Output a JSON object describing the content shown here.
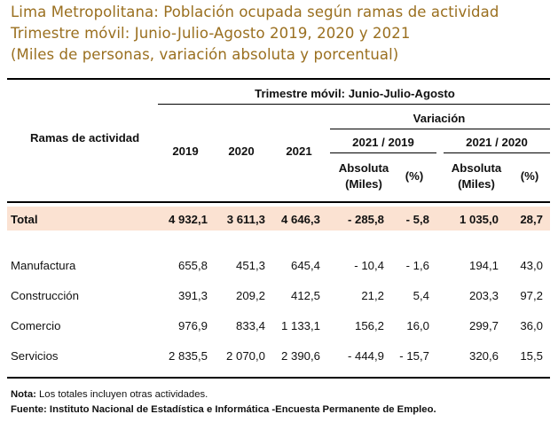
{
  "title": {
    "line1": "Lima Metropolitana: Población ocupada según ramas de actividad",
    "line2": "Trimestre móvil: Junio-Julio-Agosto  2019, 2020 y 2021",
    "line3": "(Miles de personas, variación absoluta y porcentual)"
  },
  "headers": {
    "rowhead": "Ramas de actividad",
    "period": "Trimestre móvil: Junio-Julio-Agosto",
    "variation": "Variación",
    "y2019": "2019",
    "y2020": "2020",
    "y2021": "2021",
    "cmp1": "2021 / 2019",
    "cmp2": "2021 / 2020",
    "abs1_line1": "Absoluta",
    "abs1_line2": "(Miles)",
    "pct1": "(%)",
    "abs2_line1": "Absoluta",
    "abs2_line2": "(Miles)",
    "pct2": "(%)"
  },
  "total": {
    "label": "Total",
    "v2019": "4 932,1",
    "v2020": "3 611,3",
    "v2021": "4 646,3",
    "abs1": "- 285,8",
    "pct1": "- 5,8",
    "abs2": "1 035,0",
    "pct2": "28,7"
  },
  "rows": [
    {
      "label": "Manufactura",
      "v2019": "655,8",
      "v2020": "451,3",
      "v2021": "645,4",
      "abs1": "- 10,4",
      "pct1": "- 1,6",
      "abs2": "194,1",
      "pct2": "43,0"
    },
    {
      "label": "Construcción",
      "v2019": "391,3",
      "v2020": "209,2",
      "v2021": "412,5",
      "abs1": "21,2",
      "pct1": "5,4",
      "abs2": "203,3",
      "pct2": "97,2"
    },
    {
      "label": "Comercio",
      "v2019": "976,9",
      "v2020": "833,4",
      "v2021": "1 133,1",
      "abs1": "156,2",
      "pct1": "16,0",
      "abs2": "299,7",
      "pct2": "36,0"
    },
    {
      "label": "Servicios",
      "v2019": "2 835,5",
      "v2020": "2 070,0",
      "v2021": "2 390,6",
      "abs1": "- 444,9",
      "pct1": "- 15,7",
      "abs2": "320,6",
      "pct2": "15,5"
    }
  ],
  "footnotes": {
    "note_label": "Nota:",
    "note_text": " Los  totales incluyen otras actividades.",
    "source": "Fuente: Instituto Nacional de Estadística e Informática -Encuesta Permanente de Empleo."
  }
}
